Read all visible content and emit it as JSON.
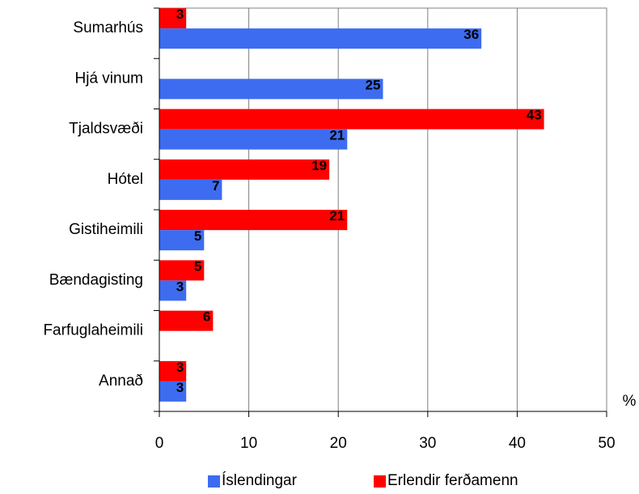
{
  "chart_data": {
    "type": "barh",
    "categories": [
      "Sumarhús",
      "Hjá vinum",
      "Tjaldsvæði",
      "Hótel",
      "Gistiheimili",
      "Bændagisting",
      "Farfuglaheimili",
      "Annað"
    ],
    "series": [
      {
        "name": "Íslendingar",
        "color": "#3d6cf0",
        "values": [
          36,
          25,
          21,
          7,
          5,
          3,
          null,
          3
        ]
      },
      {
        "name": "Erlendir ferðamenn",
        "color": "#ff0000",
        "values": [
          3,
          null,
          43,
          19,
          21,
          5,
          6,
          3
        ]
      }
    ],
    "xlabel": "%",
    "xlim": [
      0,
      50
    ],
    "xticks": [
      0,
      10,
      20,
      30,
      40,
      50
    ],
    "grid": true
  }
}
